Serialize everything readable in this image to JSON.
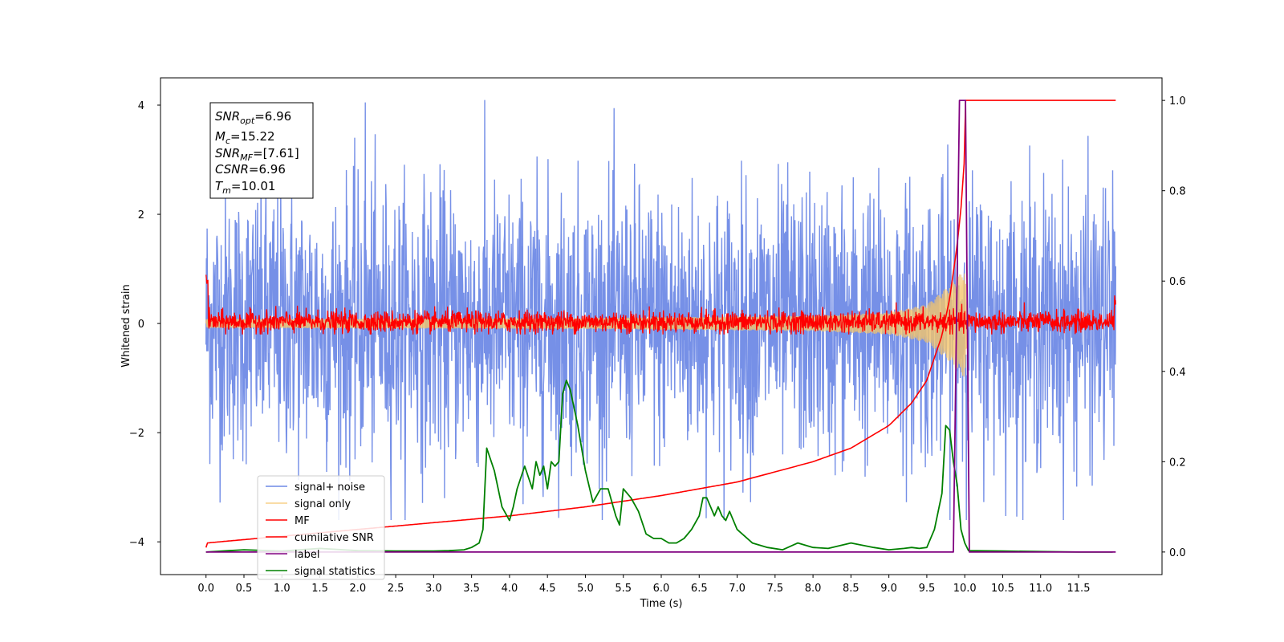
{
  "chart_data": {
    "type": "line",
    "xlabel": "Time (s)",
    "ylabel": "Whitened strain",
    "y2label": "",
    "xlim": [
      -0.6,
      12.6
    ],
    "ylim": [
      -4.6,
      4.5
    ],
    "y2lim": [
      -0.05,
      1.05
    ],
    "x_ticks": [
      "0.0",
      "0.5",
      "1.0",
      "1.5",
      "2.0",
      "2.5",
      "3.0",
      "3.5",
      "4.0",
      "4.5",
      "5.0",
      "5.5",
      "6.0",
      "6.5",
      "7.0",
      "7.5",
      "8.0",
      "8.5",
      "9.0",
      "9.5",
      "10.0",
      "10.5",
      "11.0",
      "11.5"
    ],
    "y_ticks": [
      "4",
      "2",
      "0",
      "−2",
      "−4"
    ],
    "y2_ticks": [
      "1.0",
      "0.8",
      "0.6",
      "0.4",
      "0.2",
      "0.0"
    ],
    "grid": false,
    "legend_position": "lower-left",
    "info_box": {
      "snr_opt": "=6.96",
      "mc": "=15.22",
      "snr_mf": "=[7.61]",
      "csnr": "=6.96",
      "tm": "=10.01"
    },
    "series": [
      {
        "name": "signal+ noise",
        "color": "#6f8ae6",
        "axis": "left",
        "description": "whitened noise with signal, approx std 1.3, range -3.6 to 4.1",
        "x_range": [
          0.0,
          11.99
        ],
        "y_range": [
          -3.6,
          4.1
        ]
      },
      {
        "name": "signal only",
        "color": "#f5c56b",
        "axis": "left",
        "description": "chirp growing near merger",
        "x": [
          0.0,
          5.0,
          8.0,
          9.0,
          9.5,
          9.8,
          10.0,
          10.05
        ],
        "amplitude": [
          0.08,
          0.1,
          0.14,
          0.2,
          0.35,
          0.7,
          1.0,
          0.0
        ]
      },
      {
        "name": "MF",
        "color": "#ff0000",
        "axis": "left",
        "description": "matched filter output, noisy around 0, amplitude ~0.3",
        "x_range": [
          0.0,
          11.99
        ],
        "y_range": [
          -0.2,
          1.0
        ]
      },
      {
        "name": "cumilative SNR",
        "color": "#ff0000",
        "axis": "right",
        "x": [
          0.0,
          0.01,
          1.0,
          2.0,
          3.0,
          4.0,
          5.0,
          6.0,
          7.0,
          8.0,
          8.5,
          9.0,
          9.3,
          9.5,
          9.7,
          9.8,
          9.9,
          9.95,
          10.0,
          10.01,
          11.99
        ],
        "y": [
          0.01,
          0.02,
          0.035,
          0.05,
          0.065,
          0.08,
          0.1,
          0.125,
          0.155,
          0.2,
          0.23,
          0.28,
          0.33,
          0.38,
          0.48,
          0.56,
          0.68,
          0.76,
          0.88,
          1.0,
          1.0
        ]
      },
      {
        "name": "label",
        "color": "#800080",
        "axis": "right",
        "x": [
          0.0,
          9.85,
          9.93,
          10.01,
          10.06,
          11.99
        ],
        "y": [
          0.0,
          0.0,
          1.0,
          1.0,
          0.0,
          0.0
        ]
      },
      {
        "name": "signal statistics",
        "color": "#008000",
        "axis": "right",
        "x": [
          0.0,
          0.3,
          0.5,
          1.0,
          1.5,
          2.0,
          2.5,
          3.0,
          3.2,
          3.4,
          3.5,
          3.6,
          3.65,
          3.7,
          3.8,
          3.9,
          4.0,
          4.05,
          4.1,
          4.2,
          4.3,
          4.35,
          4.4,
          4.45,
          4.5,
          4.55,
          4.6,
          4.65,
          4.7,
          4.75,
          4.8,
          4.85,
          4.9,
          5.0,
          5.1,
          5.2,
          5.3,
          5.4,
          5.45,
          5.5,
          5.6,
          5.7,
          5.8,
          5.9,
          6.0,
          6.1,
          6.2,
          6.3,
          6.4,
          6.5,
          6.55,
          6.6,
          6.7,
          6.75,
          6.8,
          6.85,
          6.9,
          7.0,
          7.2,
          7.4,
          7.6,
          7.8,
          8.0,
          8.2,
          8.5,
          8.8,
          9.0,
          9.2,
          9.3,
          9.4,
          9.5,
          9.6,
          9.7,
          9.75,
          9.8,
          9.85,
          9.9,
          9.95,
          10.0,
          10.05,
          10.5,
          11.0,
          11.5,
          11.95
        ],
        "y": [
          0.0,
          0.003,
          0.005,
          0.002,
          0.008,
          0.003,
          0.002,
          0.002,
          0.003,
          0.005,
          0.01,
          0.02,
          0.05,
          0.23,
          0.18,
          0.1,
          0.07,
          0.1,
          0.14,
          0.19,
          0.14,
          0.2,
          0.17,
          0.19,
          0.14,
          0.2,
          0.19,
          0.2,
          0.35,
          0.38,
          0.36,
          0.32,
          0.28,
          0.18,
          0.11,
          0.14,
          0.14,
          0.08,
          0.06,
          0.14,
          0.12,
          0.09,
          0.04,
          0.03,
          0.03,
          0.02,
          0.02,
          0.03,
          0.05,
          0.08,
          0.12,
          0.12,
          0.08,
          0.1,
          0.08,
          0.07,
          0.09,
          0.05,
          0.02,
          0.01,
          0.005,
          0.02,
          0.01,
          0.008,
          0.02,
          0.01,
          0.005,
          0.008,
          0.01,
          0.008,
          0.01,
          0.05,
          0.13,
          0.28,
          0.27,
          0.2,
          0.15,
          0.05,
          0.02,
          0.003,
          0.002,
          0.001,
          0.0,
          0.0
        ]
      }
    ]
  }
}
